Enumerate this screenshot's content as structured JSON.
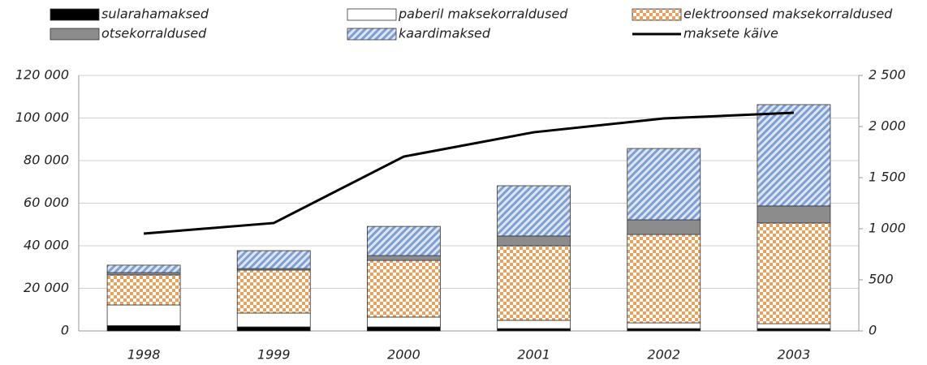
{
  "chart_data": {
    "type": "bar",
    "categories": [
      "1998",
      "1999",
      "2000",
      "2001",
      "2002",
      "2003"
    ],
    "series": [
      {
        "name": "sularahamaksed",
        "color": "#000000",
        "values": [
          2500,
          1900,
          1900,
          1100,
          1100,
          1100
        ]
      },
      {
        "name": "paberil maksekorraldused",
        "color": "#ffffff",
        "values": [
          9700,
          6500,
          4600,
          3900,
          2700,
          2300
        ]
      },
      {
        "name": "elektroonsed maksekorraldused",
        "color": "#e9a25c",
        "pattern": "checker",
        "values": [
          14100,
          20200,
          26600,
          35000,
          41500,
          47300
        ]
      },
      {
        "name": "otsekorraldused",
        "color": "#8c8c8c",
        "values": [
          1100,
          700,
          2300,
          4600,
          6900,
          8000
        ]
      },
      {
        "name": "kaardimaksed",
        "color": "#7f9fd4",
        "pattern": "hatch",
        "values": [
          3500,
          8400,
          13700,
          23600,
          33500,
          47600
        ]
      },
      {
        "name": "maksete käive",
        "color": "#000000",
        "type": "line",
        "axis": "y2",
        "values": [
          952,
          1056,
          1706,
          1944,
          2079,
          2135
        ]
      }
    ],
    "ylim": [
      0,
      120000
    ],
    "yticks": [
      0,
      {
        "value": 20000,
        "label": "20 000"
      },
      {
        "value": 40000,
        "label": "40 000"
      },
      {
        "value": 60000,
        "label": "60 000"
      },
      {
        "value": 80000,
        "label": "80 000"
      },
      {
        "value": 100000,
        "label": "100 000"
      },
      {
        "value": 120000,
        "label": "120 000"
      }
    ],
    "y2lim": [
      0,
      2500
    ],
    "y2ticks": [
      0,
      500,
      {
        "value": 1000,
        "label": "1 000"
      },
      {
        "value": 1500,
        "label": "1 500"
      },
      {
        "value": 2000,
        "label": "2 000"
      },
      {
        "value": 2500,
        "label": "2 500"
      }
    ],
    "grid": true
  }
}
